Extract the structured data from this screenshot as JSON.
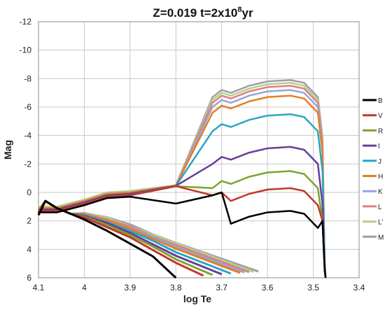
{
  "chart_data": {
    "type": "line",
    "title": "Z=0.019   t=2x10",
    "title_superscript": "8",
    "title_suffix": "yr",
    "xlabel": "log Te",
    "ylabel": "Mag",
    "xlim": [
      4.1,
      3.4
    ],
    "ylim": [
      6,
      -12
    ],
    "x_ticks": [
      "4.1",
      "4",
      "3.9",
      "3.8",
      "3.7",
      "3.6",
      "3.5",
      "3.4"
    ],
    "x_tick_values": [
      4.1,
      4.0,
      3.9,
      3.8,
      3.7,
      3.6,
      3.5,
      3.4
    ],
    "y_ticks": [
      "-12",
      "-10",
      "-8",
      "-6",
      "-4",
      "-2",
      "0",
      "2",
      "4",
      "6"
    ],
    "y_tick_values": [
      -12,
      -10,
      -8,
      -6,
      -4,
      -2,
      0,
      2,
      4,
      6
    ],
    "grid": true,
    "legend_position": "right",
    "series": [
      {
        "name": "B",
        "color": "#000000",
        "top_mag": 1.3,
        "tip_mag": 10.0,
        "ms_shift": 0.0,
        "blue_mag": 1.4,
        "ms_x": [
          4.085,
          4.06,
          4.03,
          4.0,
          3.95,
          3.9,
          3.85,
          3.82,
          3.8
        ],
        "ms_y": [
          0.6,
          1.1,
          1.5,
          1.9,
          2.7,
          3.6,
          4.5,
          5.4,
          6.0
        ]
      },
      {
        "name": "V",
        "color": "#c0392b",
        "top_mag": -0.3,
        "tip_mag": 9.0,
        "ms_shift": -0.15,
        "blue_mag": 1.3,
        "ms_x": [
          4.085,
          4.06,
          4.03,
          4.0,
          3.95,
          3.9,
          3.85,
          3.8,
          3.74
        ],
        "ms_y": [
          0.6,
          1.1,
          1.5,
          1.9,
          2.6,
          3.3,
          4.2,
          5.1,
          6.0
        ]
      },
      {
        "name": "R",
        "color": "#7fa32f",
        "top_mag": -1.5,
        "tip_mag": 7.5,
        "ms_shift": -0.2,
        "blue_mag": 1.3,
        "ms_x": [
          4.085,
          4.06,
          4.03,
          4.0,
          3.95,
          3.9,
          3.85,
          3.8,
          3.72
        ],
        "ms_y": [
          0.6,
          1.1,
          1.5,
          1.9,
          2.5,
          3.2,
          4.0,
          4.9,
          6.0
        ]
      },
      {
        "name": "I",
        "color": "#6a3d9a",
        "top_mag": -3.2,
        "tip_mag": 6.0,
        "ms_shift": -0.25,
        "blue_mag": 1.2,
        "ms_x": [
          4.085,
          4.06,
          4.03,
          4.0,
          3.95,
          3.9,
          3.85,
          3.8,
          3.7
        ],
        "ms_y": [
          0.6,
          1.1,
          1.5,
          1.9,
          2.4,
          3.1,
          3.9,
          4.7,
          6.0
        ]
      },
      {
        "name": "J",
        "color": "#2aa6c2",
        "top_mag": -5.5,
        "tip_mag": 4.8,
        "ms_shift": -0.3,
        "blue_mag": 1.2,
        "ms_x": [
          4.085,
          4.06,
          4.03,
          4.0,
          3.95,
          3.9,
          3.85,
          3.8,
          3.68
        ],
        "ms_y": [
          0.6,
          1.1,
          1.5,
          1.9,
          2.4,
          3.0,
          3.7,
          4.5,
          6.0
        ]
      },
      {
        "name": "H",
        "color": "#e67e22",
        "top_mag": -6.8,
        "tip_mag": 6.0,
        "ms_shift": -0.35,
        "blue_mag": 1.1,
        "ms_x": [
          4.085,
          4.06,
          4.03,
          4.0,
          3.95,
          3.9,
          3.85,
          3.8,
          3.66
        ],
        "ms_y": [
          0.6,
          1.1,
          1.5,
          1.9,
          2.3,
          2.9,
          3.6,
          4.3,
          6.0
        ]
      },
      {
        "name": "K",
        "color": "#95a5d6",
        "top_mag": -7.2,
        "tip_mag": 6.0,
        "ms_shift": -0.38,
        "blue_mag": 1.1,
        "ms_x": [
          4.085,
          4.06,
          4.03,
          4.0,
          3.95,
          3.9,
          3.85,
          3.8,
          3.65
        ],
        "ms_y": [
          0.6,
          1.1,
          1.5,
          1.9,
          2.3,
          2.9,
          3.5,
          4.2,
          6.0
        ]
      },
      {
        "name": "L",
        "color": "#e0807a",
        "top_mag": -7.5,
        "tip_mag": 6.0,
        "ms_shift": -0.4,
        "blue_mag": 1.1,
        "ms_x": [
          4.085,
          4.06,
          4.03,
          4.0,
          3.95,
          3.9,
          3.85,
          3.8,
          3.64
        ],
        "ms_y": [
          0.6,
          1.1,
          1.5,
          1.9,
          2.3,
          2.8,
          3.5,
          4.1,
          6.0
        ]
      },
      {
        "name": "L'",
        "color": "#b5d08a",
        "top_mag": -7.7,
        "tip_mag": 6.0,
        "ms_shift": -0.42,
        "blue_mag": 1.0,
        "ms_x": [
          4.085,
          4.06,
          4.03,
          4.0,
          3.95,
          3.9,
          3.85,
          3.8,
          3.63
        ],
        "ms_y": [
          0.6,
          1.1,
          1.5,
          1.9,
          2.2,
          2.8,
          3.4,
          4.0,
          6.0
        ]
      },
      {
        "name": "M",
        "color": "#a09cab",
        "top_mag": -7.9,
        "tip_mag": 6.0,
        "ms_shift": -0.45,
        "blue_mag": 1.0,
        "ms_x": [
          4.085,
          4.06,
          4.03,
          4.0,
          3.95,
          3.9,
          3.85,
          3.8,
          3.62
        ],
        "ms_y": [
          0.6,
          1.1,
          1.5,
          1.9,
          2.2,
          2.7,
          3.4,
          4.0,
          6.0
        ]
      }
    ]
  }
}
